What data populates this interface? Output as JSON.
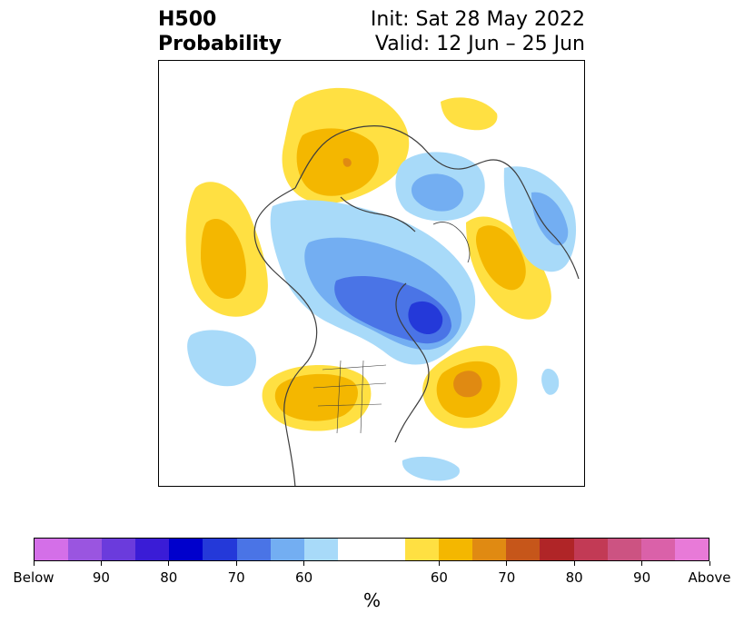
{
  "title": {
    "line1": "H500",
    "line2": "Probability"
  },
  "subtitle": {
    "init": "Init: Sat 28 May 2022",
    "valid": "Valid: 12 Jun – 25 Jun"
  },
  "colorbar": {
    "unit": "%",
    "colors": [
      "#d46fe8",
      "#9a55e0",
      "#6b3bdc",
      "#3a1cd6",
      "#0000cc",
      "#2439d9",
      "#4a74e6",
      "#73aef2",
      "#a8daf9",
      "#ffffff",
      "#ffffff",
      "#ffe042",
      "#f4b700",
      "#e08a12",
      "#c6561a",
      "#b02527",
      "#c23a55",
      "#cc5382",
      "#da61a9",
      "#e87ad8"
    ],
    "tick_labels": [
      "Below",
      "90",
      "80",
      "70",
      "60",
      "60",
      "70",
      "80",
      "90",
      "Above"
    ]
  },
  "legend_colors": {
    "above_1": "#ffe042",
    "above_2": "#f4b700",
    "above_3": "#e08a12",
    "above_4": "#c6561a",
    "below_1": "#a8daf9",
    "below_2": "#73aef2",
    "below_3": "#4a74e6",
    "below_4": "#2439d9"
  }
}
